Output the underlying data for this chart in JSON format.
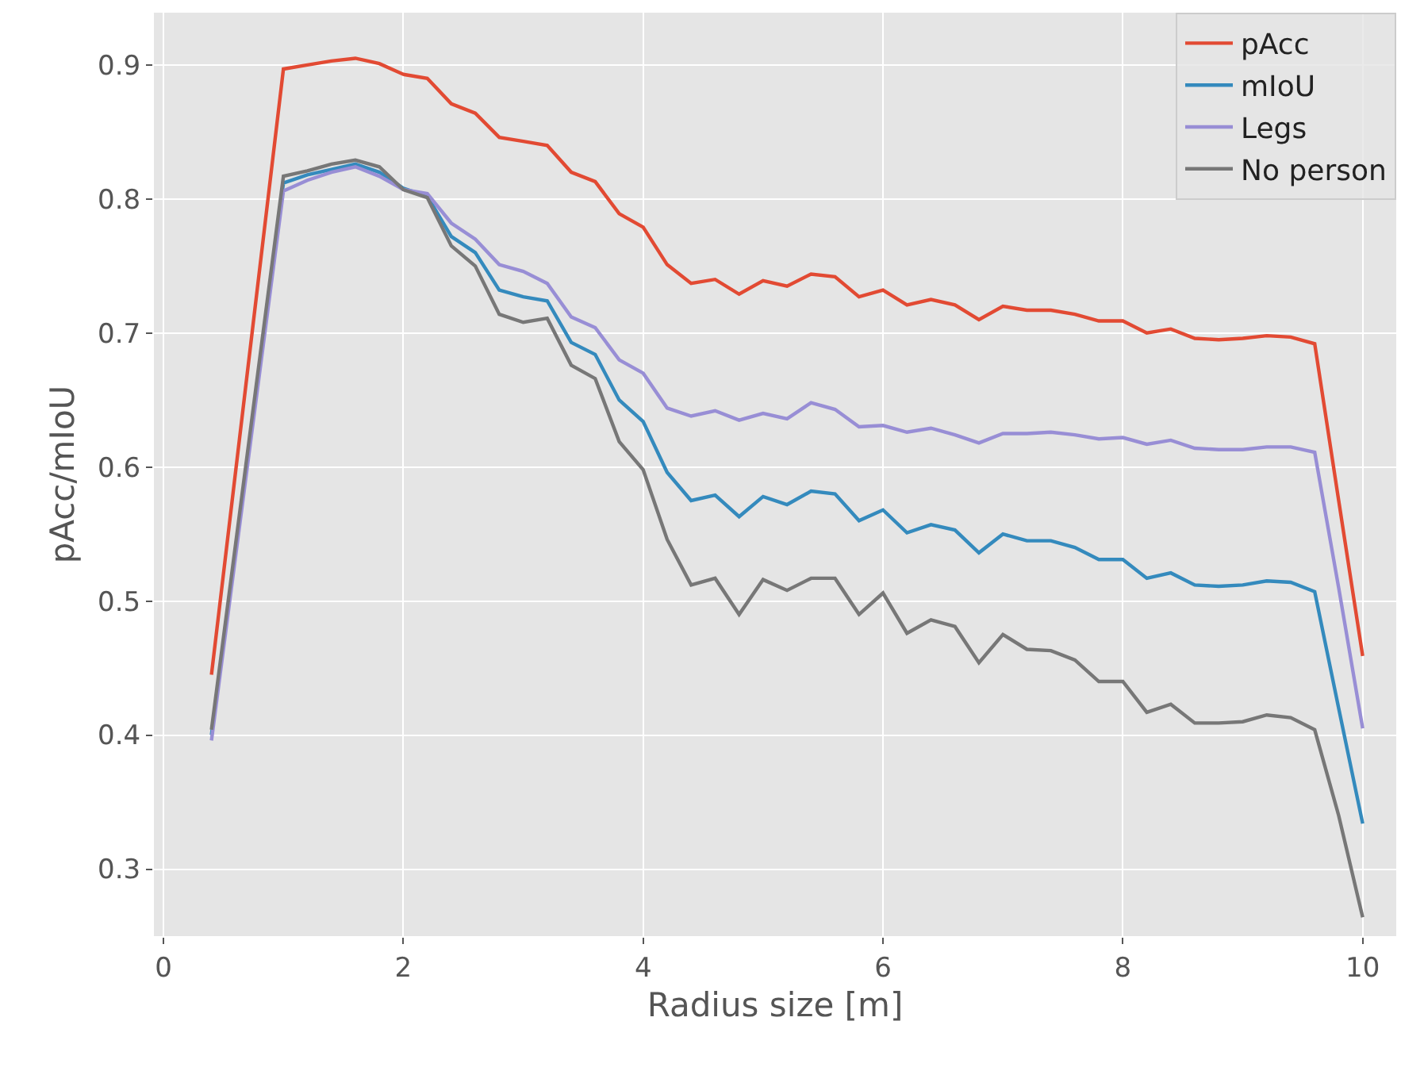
{
  "chart_data": {
    "type": "line",
    "xlabel": "Radius size [m]",
    "ylabel": "pAcc/mIoU",
    "x": [
      0.4,
      1.0,
      1.2,
      1.4,
      1.6,
      1.8,
      2.0,
      2.2,
      2.4,
      2.6,
      2.8,
      3.0,
      3.2,
      3.4,
      3.6,
      3.8,
      4.0,
      4.2,
      4.4,
      4.6,
      4.8,
      5.0,
      5.2,
      5.4,
      5.6,
      5.8,
      6.0,
      6.2,
      6.4,
      6.6,
      6.8,
      7.0,
      7.2,
      7.4,
      7.6,
      7.8,
      8.0,
      8.2,
      8.4,
      8.6,
      8.8,
      9.0,
      9.2,
      9.4,
      9.6,
      9.8,
      10.0
    ],
    "series": [
      {
        "name": "pAcc",
        "color": "#e24a33",
        "values": [
          0.445,
          0.897,
          0.9,
          0.903,
          0.905,
          0.901,
          0.893,
          0.89,
          0.871,
          0.864,
          0.846,
          0.843,
          0.84,
          0.82,
          0.813,
          0.789,
          0.779,
          0.751,
          0.737,
          0.74,
          0.729,
          0.739,
          0.735,
          0.744,
          0.742,
          0.727,
          0.732,
          0.721,
          0.725,
          0.721,
          0.71,
          0.72,
          0.717,
          0.717,
          0.714,
          0.709,
          0.709,
          0.7,
          0.703,
          0.696,
          0.695,
          0.696,
          0.698,
          0.697,
          0.692,
          0.575,
          0.459
        ]
      },
      {
        "name": "mIoU",
        "color": "#348abd",
        "values": [
          0.4,
          0.812,
          0.818,
          0.822,
          0.826,
          0.82,
          0.808,
          0.802,
          0.772,
          0.76,
          0.732,
          0.727,
          0.724,
          0.693,
          0.684,
          0.65,
          0.634,
          0.596,
          0.575,
          0.579,
          0.563,
          0.578,
          0.572,
          0.582,
          0.58,
          0.56,
          0.568,
          0.551,
          0.557,
          0.553,
          0.536,
          0.55,
          0.545,
          0.545,
          0.54,
          0.531,
          0.531,
          0.517,
          0.521,
          0.512,
          0.511,
          0.512,
          0.515,
          0.514,
          0.507,
          0.42,
          0.334
        ]
      },
      {
        "name": "Legs",
        "color": "#988ed5",
        "values": [
          0.396,
          0.806,
          0.814,
          0.82,
          0.824,
          0.817,
          0.807,
          0.804,
          0.782,
          0.77,
          0.751,
          0.746,
          0.737,
          0.712,
          0.704,
          0.68,
          0.67,
          0.644,
          0.638,
          0.642,
          0.635,
          0.64,
          0.636,
          0.648,
          0.643,
          0.63,
          0.631,
          0.626,
          0.629,
          0.624,
          0.618,
          0.625,
          0.625,
          0.626,
          0.624,
          0.621,
          0.622,
          0.617,
          0.62,
          0.614,
          0.613,
          0.613,
          0.615,
          0.615,
          0.611,
          0.51,
          0.405
        ]
      },
      {
        "name": "No person",
        "color": "#777777",
        "values": [
          0.404,
          0.817,
          0.821,
          0.826,
          0.829,
          0.824,
          0.807,
          0.801,
          0.765,
          0.75,
          0.714,
          0.708,
          0.711,
          0.676,
          0.666,
          0.619,
          0.598,
          0.546,
          0.512,
          0.517,
          0.49,
          0.516,
          0.508,
          0.517,
          0.517,
          0.49,
          0.506,
          0.476,
          0.486,
          0.481,
          0.454,
          0.475,
          0.464,
          0.463,
          0.456,
          0.44,
          0.44,
          0.417,
          0.423,
          0.409,
          0.409,
          0.41,
          0.415,
          0.413,
          0.404,
          0.34,
          0.264
        ]
      }
    ],
    "xlim": [
      -0.08,
      10.28
    ],
    "ylim": [
      0.25,
      0.939
    ],
    "xticks": [
      0,
      2,
      4,
      6,
      8,
      10
    ],
    "yticks": [
      0.3,
      0.4,
      0.5,
      0.6,
      0.7,
      0.8,
      0.9
    ],
    "grid": true,
    "legend": "top right",
    "line_style": "solid",
    "marker": "none"
  }
}
